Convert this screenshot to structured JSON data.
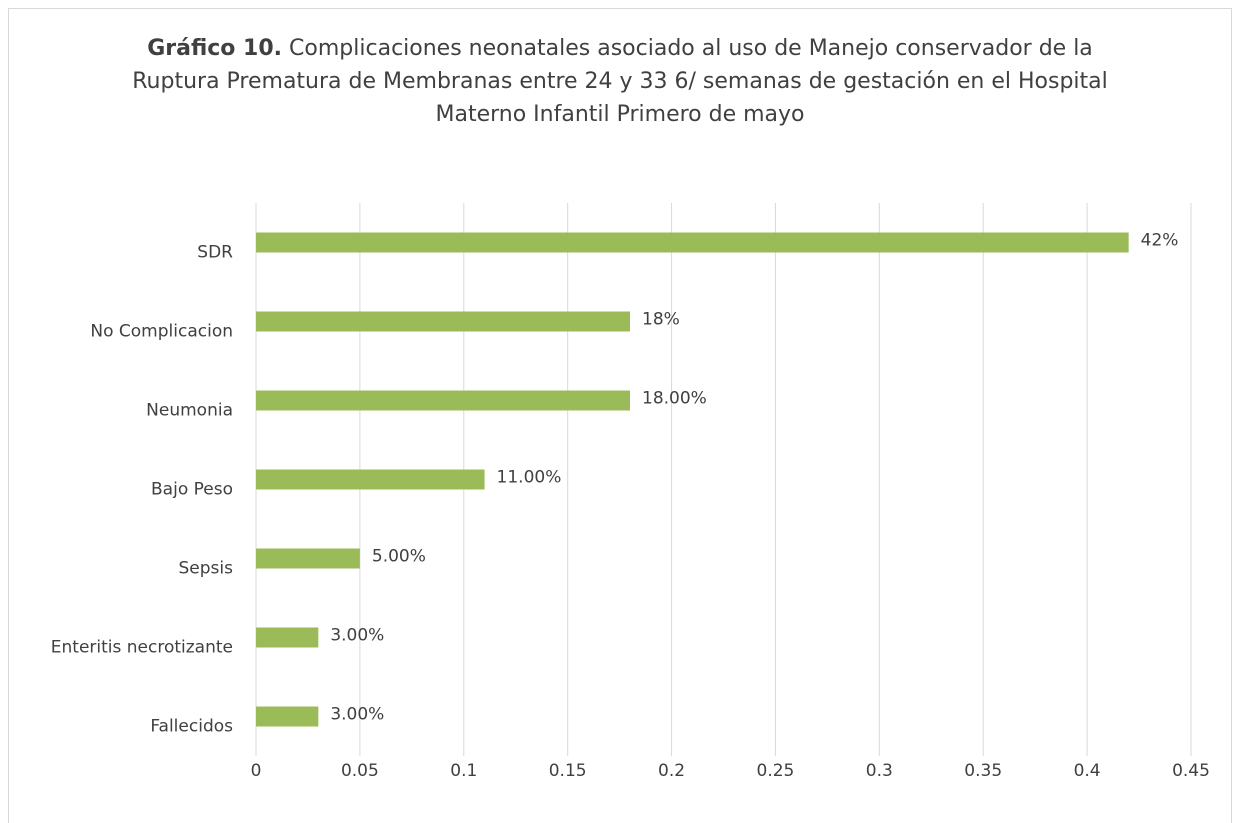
{
  "chart_data": {
    "type": "barh",
    "title": {
      "label": "Gráfico 10.",
      "text": "Complicaciones neonatales asociado al uso de Manejo conservador de la Ruptura Prematura de Membranas entre 24 y 33 6/ semanas de gestación en el Hospital Materno Infantil Primero de mayo"
    },
    "categories": [
      "SDR",
      "No Complicacion",
      "Neumonia",
      "Bajo Peso",
      "Sepsis",
      "Enteritis necrotizante",
      "Fallecidos"
    ],
    "values": [
      0.42,
      0.18,
      0.18,
      0.11,
      0.05,
      0.03,
      0.03
    ],
    "value_labels": [
      "42%",
      "18%",
      "18.00%",
      "11.00%",
      "5.00%",
      "3.00%",
      "3.00%"
    ],
    "color": "#9bbb59",
    "xlim": [
      0,
      0.45
    ],
    "xticks": [
      0,
      0.05,
      0.1,
      0.15,
      0.2,
      0.25,
      0.3,
      0.35,
      0.4,
      0.45
    ],
    "grid": true
  }
}
